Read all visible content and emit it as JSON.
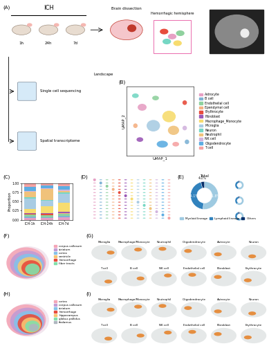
{
  "panel_labels": [
    "(A)",
    "(B)",
    "(C)",
    "(D)",
    "(E)",
    "(F)",
    "(G)",
    "(H)",
    "(I)"
  ],
  "workflow": {
    "condition": "ICH",
    "timepoints": [
      "1h",
      "24h",
      "7d"
    ],
    "dissection": "Brain dissection",
    "region": "Hemorrhagic hemisphere",
    "methods": [
      {
        "name": "Single cell sequencing",
        "result": "Landscape"
      },
      {
        "name": "Spatial transcriptome"
      }
    ]
  },
  "chart_data": [
    {
      "type": "scatter",
      "x_label": "UMAP_1",
      "y_label": "UMAP_2",
      "xlim": [
        -15,
        15
      ],
      "ylim": [
        -15,
        15
      ],
      "tick_labels": false,
      "series": [
        {
          "name": "Astrocyte",
          "color": "#e6a0c4",
          "center": [
            -8,
            6
          ],
          "size": [
            4,
            3
          ]
        },
        {
          "name": "B cell",
          "color": "#7fb3d5",
          "center": [
            12,
            -9
          ],
          "size": [
            2,
            2
          ]
        },
        {
          "name": "Endothelial cell",
          "color": "#8fd19e",
          "center": [
            -2,
            10
          ],
          "size": [
            3,
            2
          ]
        },
        {
          "name": "Ependymal cell",
          "color": "#f4b183",
          "center": [
            -11,
            -2
          ],
          "size": [
            2,
            2
          ]
        },
        {
          "name": "Erythrocyte",
          "color": "#e74c3c",
          "center": [
            11,
            8
          ],
          "size": [
            2,
            2
          ]
        },
        {
          "name": "Fibroblast",
          "color": "#9b59b6",
          "center": [
            -9,
            -8
          ],
          "size": [
            3,
            2
          ]
        },
        {
          "name": "Macrophage_Monocyte",
          "color": "#f7dc6f",
          "center": [
            4,
            2
          ],
          "size": [
            6,
            5
          ]
        },
        {
          "name": "Microglia",
          "color": "#a9cce3",
          "center": [
            -3,
            -2
          ],
          "size": [
            6,
            5
          ]
        },
        {
          "name": "Neuron",
          "color": "#76d7c4",
          "center": [
            -11,
            11
          ],
          "size": [
            3,
            2
          ]
        },
        {
          "name": "Neutrophil",
          "color": "#f0c27b",
          "center": [
            6,
            -4
          ],
          "size": [
            5,
            4
          ]
        },
        {
          "name": "NK cell",
          "color": "#d2b4de",
          "center": [
            11,
            -3
          ],
          "size": [
            2,
            2
          ]
        },
        {
          "name": "Oligodendrocyte",
          "color": "#5dade2",
          "center": [
            1,
            -10
          ],
          "size": [
            5,
            3
          ]
        },
        {
          "name": "T cell",
          "color": "#f5a3a3",
          "center": [
            7,
            -10
          ],
          "size": [
            3,
            2
          ]
        }
      ]
    },
    {
      "type": "bar",
      "stacked": true,
      "categories": [
        "ICH-1h",
        "ICH-24h",
        "ICH-7d"
      ],
      "y_label": "Proportion",
      "ylim": [
        0,
        1
      ],
      "yticks": [
        {
          "value": 0,
          "label": "0.00"
        },
        {
          "value": 0.25,
          "label": "0.25"
        },
        {
          "value": 0.5,
          "label": "0.50"
        },
        {
          "value": 0.75,
          "label": "0.75"
        },
        {
          "value": 1,
          "label": "1.00"
        }
      ],
      "series": [
        {
          "name": "Astrocyte",
          "color": "#e6a0c4",
          "values": [
            0.05,
            0.04,
            0.06
          ]
        },
        {
          "name": "B cell",
          "color": "#7fb3d5",
          "values": [
            0.03,
            0.03,
            0.04
          ]
        },
        {
          "name": "Endothelial cell",
          "color": "#8fd19e",
          "values": [
            0.06,
            0.05,
            0.07
          ]
        },
        {
          "name": "Ependymal cell",
          "color": "#f4b183",
          "values": [
            0.01,
            0.01,
            0.01
          ]
        },
        {
          "name": "Erythrocyte",
          "color": "#e74c3c",
          "values": [
            0.02,
            0.03,
            0.01
          ]
        },
        {
          "name": "Fibroblast",
          "color": "#9b59b6",
          "values": [
            0.02,
            0.02,
            0.03
          ]
        },
        {
          "name": "Macrophage_Monocyte",
          "color": "#f7dc6f",
          "values": [
            0.1,
            0.2,
            0.25
          ]
        },
        {
          "name": "Microglia",
          "color": "#a9cce3",
          "values": [
            0.3,
            0.15,
            0.25
          ]
        },
        {
          "name": "Neuron",
          "color": "#76d7c4",
          "values": [
            0.03,
            0.02,
            0.03
          ]
        },
        {
          "name": "Neutrophil",
          "color": "#f0c27b",
          "values": [
            0.15,
            0.3,
            0.05
          ]
        },
        {
          "name": "NK cell",
          "color": "#d2b4de",
          "values": [
            0.02,
            0.02,
            0.03
          ]
        },
        {
          "name": "Oligodendrocyte",
          "color": "#5dade2",
          "values": [
            0.12,
            0.08,
            0.1
          ]
        },
        {
          "name": "T cell",
          "color": "#f5a3a3",
          "values": [
            0.09,
            0.05,
            0.07
          ]
        }
      ]
    },
    {
      "type": "pie",
      "title": "Total",
      "categories": [
        "Myeloid lineage",
        "Lymphoid lineage",
        "Others"
      ],
      "values": [
        51.8,
        44.1,
        4.1
      ],
      "value_labels": [
        "51.8%",
        "44.1%",
        "4.1%"
      ],
      "colors": [
        "#9ecae1",
        "#3182bd",
        "#08306b"
      ],
      "legend": "upper left",
      "small_pies": [
        [
          55,
          41,
          4
        ],
        [
          60,
          36,
          4
        ],
        [
          48,
          47,
          5
        ]
      ]
    }
  ],
  "spatial_sections": [
    {
      "regions": [
        {
          "name": "corpus callosum",
          "color": "#f4a6b7"
        },
        {
          "name": "striatum",
          "color": "#c39bd3"
        },
        {
          "name": "cortex",
          "color": "#85c1e9"
        },
        {
          "name": "ventricle",
          "color": "#f8c471"
        },
        {
          "name": "hemorrhage",
          "color": "#e74c3c"
        },
        {
          "name": "fiber tracts",
          "color": "#82e0aa"
        }
      ]
    },
    {
      "regions": [
        {
          "name": "cortex",
          "color": "#f4a6b7"
        },
        {
          "name": "corpus callosum",
          "color": "#c39bd3"
        },
        {
          "name": "striatum",
          "color": "#85c1e9"
        },
        {
          "name": "hemorrhage",
          "color": "#e74c3c"
        },
        {
          "name": "hippocampus",
          "color": "#f8c471"
        },
        {
          "name": "globus pallidus",
          "color": "#82e0aa"
        },
        {
          "name": "thalamus",
          "color": "#aeb6bf"
        }
      ]
    }
  ],
  "cell_type_maps": [
    "Microglia",
    "Macrophage/Monocyte",
    "Neutrophil",
    "Oligodendrocyte",
    "Astrocyte",
    "Neuron",
    "T cell",
    "B cell",
    "NK cell",
    "Endothelial cell",
    "Fibroblast",
    "Erythrocyte"
  ]
}
